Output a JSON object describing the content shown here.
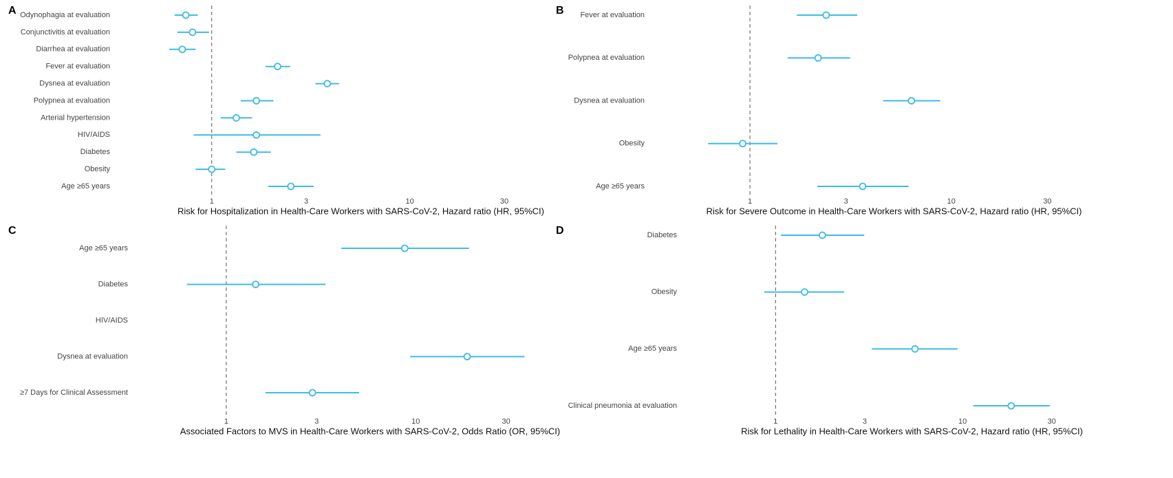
{
  "chart_data": [
    {
      "type": "forest",
      "panel": "A",
      "xlabel": "Risk for Hospitalization in Health-Care Workers with SARS-CoV-2, Hazard ratio (HR, 95%CI)",
      "categories": [
        "Odynophagia at evaluation",
        "Conjunctivitis at evaluation",
        "Diarrhea at evaluation",
        "Fever at evaluation",
        "Dysnea at evaluation",
        "Polypnea at evaluation",
        "Arterial hypertension",
        "HIV/AIDS",
        "Diabetes",
        "Obesity",
        "Age ≥65 years"
      ],
      "values": [
        0.74,
        0.8,
        0.71,
        2.15,
        3.83,
        1.68,
        1.33,
        1.68,
        1.63,
        1.0,
        2.51
      ],
      "lower": [
        0.65,
        0.67,
        0.61,
        1.87,
        3.34,
        1.4,
        1.11,
        0.81,
        1.33,
        0.83,
        1.93
      ],
      "upper": [
        0.85,
        0.97,
        0.83,
        2.49,
        4.39,
        2.05,
        1.6,
        3.54,
        1.99,
        1.17,
        3.27
      ],
      "xlim": [
        0.55,
        40
      ],
      "xticks": [
        1,
        3,
        10,
        30
      ],
      "log_x": true,
      "reference_line": 1,
      "color": "#3dbbe8"
    },
    {
      "type": "forest",
      "panel": "B",
      "xlabel": "Risk for Severe Outcome in Health-Care Workers with SARS-CoV-2, Hazard ratio (HR, 95%CI)",
      "categories": [
        "Fever at evaluation",
        "Polypnea at evaluation",
        "Dysnea at evaluation",
        "Obesity",
        "Age ≥65 years"
      ],
      "values": [
        2.39,
        2.18,
        6.34,
        0.92,
        3.63
      ],
      "lower": [
        1.71,
        1.54,
        4.59,
        0.62,
        2.16
      ],
      "upper": [
        3.41,
        3.15,
        8.82,
        1.37,
        6.14
      ],
      "xlim": [
        0.5,
        35
      ],
      "xticks": [
        1,
        3,
        10,
        30
      ],
      "log_x": true,
      "reference_line": 1,
      "color": "#3dbbe8"
    },
    {
      "type": "forest",
      "panel": "C",
      "xlabel": "Associated Factors to MVS in Health-Care Workers with SARS-CoV-2, Odds Ratio (OR, 95%CI)",
      "categories": [
        "Age ≥65 years",
        "Diabetes",
        "HIV/AIDS",
        "Dysnea at evaluation",
        "≥7 Days for Clinical Assessment"
      ],
      "values": [
        8.75,
        1.43,
        null,
        18.7,
        2.85
      ],
      "lower": [
        4.05,
        0.62,
        null,
        9.35,
        1.61
      ],
      "upper": [
        19.1,
        3.34,
        null,
        37.5,
        5.03
      ],
      "xlim": [
        0.5,
        40
      ],
      "xticks": [
        1,
        3,
        10,
        30
      ],
      "log_x": true,
      "reference_line": 1,
      "color": "#3dbbe8"
    },
    {
      "type": "forest",
      "panel": "D",
      "xlabel": "Risk for Lethality in Health-Care Workers with SARS-CoV-2, Hazard ratio (HR, 95%CI)",
      "categories": [
        "Diabetes",
        "Obesity",
        "Age ≥65 years",
        "Clinical pneumonia at evaluation"
      ],
      "values": [
        1.78,
        1.43,
        5.57,
        18.2
      ],
      "lower": [
        1.07,
        0.87,
        3.27,
        11.4
      ],
      "upper": [
        2.98,
        2.33,
        9.42,
        29.3
      ],
      "xlim": [
        0.6,
        35
      ],
      "xticks": [
        1,
        3,
        10,
        30
      ],
      "log_x": true,
      "reference_line": 1,
      "color": "#3dbbe8"
    }
  ]
}
